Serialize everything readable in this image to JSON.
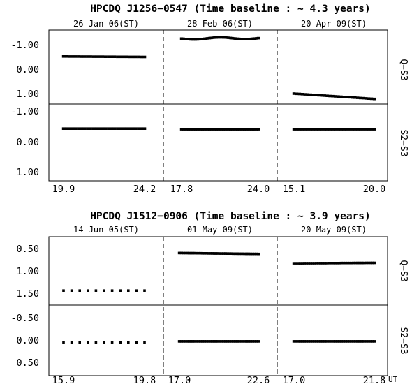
{
  "panels": [
    {
      "title": "HPCDQ J1256−0547 (Time baseline : ~ 4.3 years)",
      "sessions": [
        {
          "label": "26-Jan-06(ST)",
          "x_ticks": [
            "19.9",
            "24.2"
          ],
          "x_range": [
            19.9,
            24.2
          ]
        },
        {
          "label": "28-Feb-06(ST)",
          "x_ticks": [
            "17.8",
            "24.0"
          ],
          "x_range": [
            17.8,
            24.0
          ]
        },
        {
          "label": "20-Apr-09(ST)",
          "x_ticks": [
            "15.1",
            "20.0"
          ],
          "x_range": [
            15.1,
            20.0
          ]
        }
      ],
      "rows": [
        {
          "ylabel": "Q−S3",
          "y_ticks": [
            "-1.00",
            "0.00",
            "1.00"
          ],
          "y_tick_values": [
            -1.0,
            0.0,
            1.0
          ],
          "ylim": [
            -1.4,
            1.4
          ],
          "inverted": true
        },
        {
          "ylabel": "S2−S3",
          "y_ticks": [
            "-1.00",
            "0.00",
            "1.00"
          ],
          "y_tick_values": [
            -1.0,
            0.0,
            1.0
          ],
          "ylim": [
            -1.4,
            1.4
          ],
          "inverted": true
        }
      ]
    },
    {
      "title": "HPCDQ J1512−0906 (Time baseline : ~ 3.9 years)",
      "sessions": [
        {
          "label": "14-Jun-05(ST)",
          "x_ticks": [
            "15.9",
            "19.8"
          ],
          "x_range": [
            15.9,
            19.8
          ]
        },
        {
          "label": "01-May-09(ST)",
          "x_ticks": [
            "17.0",
            "22.6"
          ],
          "x_range": [
            17.0,
            22.6
          ]
        },
        {
          "label": "20-May-09(ST)",
          "x_ticks": [
            "17.0",
            "21.8"
          ],
          "x_range": [
            17.0,
            21.8
          ]
        }
      ],
      "rows": [
        {
          "ylabel": "Q−S3",
          "y_ticks": [
            "0.50",
            "1.00",
            "1.50"
          ],
          "y_tick_values": [
            0.5,
            1.0,
            1.5
          ],
          "ylim": [
            0.3,
            1.7
          ],
          "inverted": true
        },
        {
          "ylabel": "S2−S3",
          "y_ticks": [
            "-0.50",
            "0.00",
            "0.50"
          ],
          "y_tick_values": [
            -0.5,
            0.0,
            0.5
          ],
          "ylim": [
            -0.7,
            0.7
          ],
          "inverted": true
        }
      ]
    }
  ],
  "x_unit_label": "UT",
  "chart_data": [
    {
      "type": "scatter",
      "title": "HPCDQ J1256−0547 (Time baseline : ~ 4.3 years)",
      "xlabel": "UT",
      "ylabels": [
        "Q−S3",
        "S2−S3"
      ],
      "y_inverted": true,
      "sessions": [
        {
          "date": "26-Jan-06(ST)",
          "xlim": [
            19.9,
            24.2
          ],
          "q_s3": {
            "x_start": 19.9,
            "x_end": 24.2,
            "y_start": -0.52,
            "y_end": -0.5,
            "n": 28
          },
          "s2_s3": {
            "x_start": 19.9,
            "x_end": 24.2,
            "y_start": -0.42,
            "y_end": -0.42,
            "n": 28
          }
        },
        {
          "date": "28-Feb-06(ST)",
          "xlim": [
            17.8,
            24.0
          ],
          "q_s3": {
            "x_start": 17.8,
            "x_end": 24.0,
            "y_start": -1.25,
            "y_end": -1.27,
            "n": 45,
            "wave": 0.04
          },
          "s2_s3": {
            "x_start": 17.8,
            "x_end": 24.0,
            "y_start": -0.4,
            "y_end": -0.4,
            "n": 45
          }
        },
        {
          "date": "20-Apr-09(ST)",
          "xlim": [
            15.1,
            20.0
          ],
          "q_s3": {
            "x_start": 15.1,
            "x_end": 20.0,
            "y_start": 1.0,
            "y_end": 1.22,
            "n": 30
          },
          "s2_s3": {
            "x_start": 15.1,
            "x_end": 20.0,
            "y_start": -0.4,
            "y_end": -0.4,
            "n": 30
          }
        }
      ]
    },
    {
      "type": "scatter",
      "title": "HPCDQ J1512−0906 (Time baseline : ~ 3.9 years)",
      "xlabel": "UT",
      "ylabels": [
        "Q−S3",
        "S2−S3"
      ],
      "y_inverted": true,
      "sessions": [
        {
          "date": "14-Jun-05(ST)",
          "xlim": [
            15.9,
            19.8
          ],
          "q_s3": {
            "x_start": 15.9,
            "x_end": 19.8,
            "y_start": 1.44,
            "y_end": 1.44,
            "n": 11
          },
          "s2_s3": {
            "x_start": 15.9,
            "x_end": 19.8,
            "y_start": 0.06,
            "y_end": 0.06,
            "n": 11
          }
        },
        {
          "date": "01-May-09(ST)",
          "xlim": [
            17.0,
            22.6
          ],
          "q_s3": {
            "x_start": 17.0,
            "x_end": 22.6,
            "y_start": 0.6,
            "y_end": 0.62,
            "n": 42
          },
          "s2_s3": {
            "x_start": 17.0,
            "x_end": 22.6,
            "y_start": 0.03,
            "y_end": 0.03,
            "n": 42
          }
        },
        {
          "date": "20-May-09(ST)",
          "xlim": [
            17.0,
            21.8
          ],
          "q_s3": {
            "x_start": 17.0,
            "x_end": 21.8,
            "y_start": 0.83,
            "y_end": 0.82,
            "n": 40
          },
          "s2_s3": {
            "x_start": 17.0,
            "x_end": 21.8,
            "y_start": 0.03,
            "y_end": 0.03,
            "n": 40
          }
        }
      ]
    }
  ]
}
